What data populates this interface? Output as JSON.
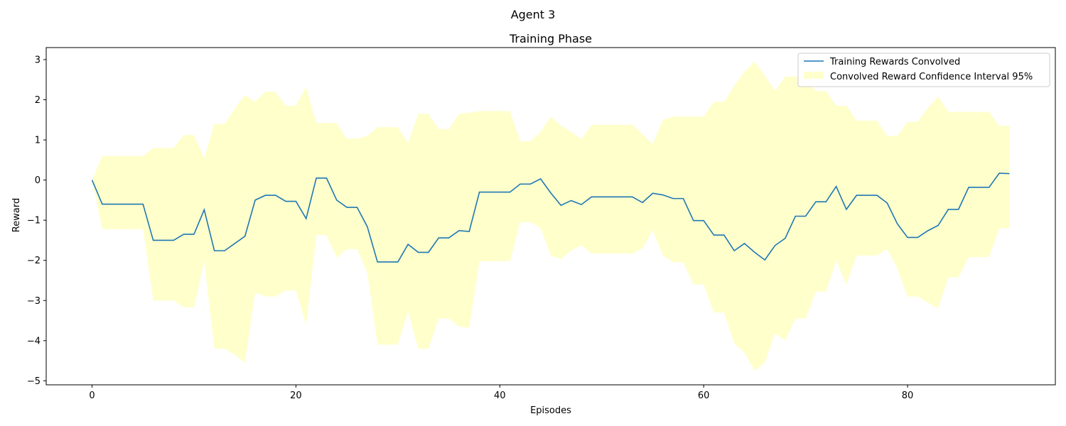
{
  "suptitle": "Agent 3",
  "chart_data": {
    "type": "line",
    "title": "Training Phase",
    "xlabel": "Episodes",
    "ylabel": "Reward",
    "xlim": [
      -4.5,
      94.5
    ],
    "ylim": [
      -5.1,
      3.3
    ],
    "xticks": [
      0,
      20,
      40,
      60,
      80
    ],
    "yticks": [
      3,
      2,
      1,
      0,
      -1,
      -2,
      -3,
      -4,
      -5
    ],
    "ytick_labels": [
      "3",
      "2",
      "1",
      "0",
      "−1",
      "−2",
      "−3",
      "−4",
      "−5"
    ],
    "legend_position": "top-right",
    "grid": false,
    "colors": {
      "line": "#1f77b4",
      "band": "#ffffcc"
    },
    "series": [
      {
        "name": "Training Rewards Convolved",
        "kind": "line",
        "x": [
          0,
          1,
          2,
          3,
          4,
          5,
          6,
          7,
          8,
          9,
          10,
          11,
          12,
          13,
          14,
          15,
          16,
          17,
          18,
          19,
          20,
          21,
          22,
          23,
          24,
          25,
          26,
          27,
          28,
          29,
          30,
          31,
          32,
          33,
          34,
          35,
          36,
          37,
          38,
          39,
          40,
          41,
          42,
          43,
          44,
          45,
          46,
          47,
          48,
          49,
          50,
          51,
          52,
          53,
          54,
          55,
          56,
          57,
          58,
          59,
          60,
          61,
          62,
          63,
          64,
          65,
          66,
          67,
          68,
          69,
          70,
          71,
          72,
          73,
          74,
          75,
          76,
          77,
          78,
          79,
          80,
          81,
          82,
          83,
          84,
          85,
          86,
          87,
          88,
          89,
          90
        ],
        "y": [
          0,
          -0.6,
          -0.6,
          -0.6,
          -0.6,
          -0.6,
          -1.5,
          -1.5,
          -1.5,
          -1.35,
          -1.35,
          -0.74,
          -1.76,
          -1.76,
          -1.58,
          -1.4,
          -0.5,
          -0.38,
          -0.38,
          -0.53,
          -0.53,
          -0.96,
          0.05,
          0.05,
          -0.5,
          -0.68,
          -0.68,
          -1.16,
          -2.04,
          -2.04,
          -2.04,
          -1.6,
          -1.8,
          -1.8,
          -1.44,
          -1.44,
          -1.26,
          -1.28,
          -0.3,
          -0.3,
          -0.3,
          -0.3,
          -0.1,
          -0.1,
          0.03,
          -0.32,
          -0.63,
          -0.51,
          -0.61,
          -0.42,
          -0.42,
          -0.42,
          -0.42,
          -0.42,
          -0.56,
          -0.33,
          -0.37,
          -0.46,
          -0.46,
          -1.01,
          -1.01,
          -1.37,
          -1.37,
          -1.76,
          -1.58,
          -1.8,
          -1.99,
          -1.63,
          -1.45,
          -0.9,
          -0.9,
          -0.54,
          -0.54,
          -0.16,
          -0.73,
          -0.38,
          -0.38,
          -0.38,
          -0.57,
          -1.09,
          -1.43,
          -1.43,
          -1.26,
          -1.13,
          -0.73,
          -0.73,
          -0.18,
          -0.18,
          -0.18,
          0.17,
          0.16
        ]
      },
      {
        "name": "Convolved Reward Confidence Interval 95%",
        "kind": "band",
        "x": [
          0,
          1,
          2,
          3,
          4,
          5,
          6,
          7,
          8,
          9,
          10,
          11,
          12,
          13,
          14,
          15,
          16,
          17,
          18,
          19,
          20,
          21,
          22,
          23,
          24,
          25,
          26,
          27,
          28,
          29,
          30,
          31,
          32,
          33,
          34,
          35,
          36,
          37,
          38,
          39,
          40,
          41,
          42,
          43,
          44,
          45,
          46,
          47,
          48,
          49,
          50,
          51,
          52,
          53,
          54,
          55,
          56,
          57,
          58,
          59,
          60,
          61,
          62,
          63,
          64,
          65,
          66,
          67,
          68,
          69,
          70,
          71,
          72,
          73,
          74,
          75,
          76,
          77,
          78,
          79,
          80,
          81,
          82,
          83,
          84,
          85,
          86,
          87,
          88,
          89,
          90
        ],
        "upper": [
          0,
          0.6,
          0.6,
          0.6,
          0.6,
          0.6,
          0.8,
          0.8,
          0.8,
          1.12,
          1.12,
          0.55,
          1.4,
          1.4,
          1.78,
          2.12,
          1.95,
          2.2,
          2.2,
          1.85,
          1.85,
          2.32,
          1.42,
          1.42,
          1.42,
          1.03,
          1.03,
          1.1,
          1.32,
          1.32,
          1.32,
          0.92,
          1.65,
          1.65,
          1.27,
          1.27,
          1.65,
          1.68,
          1.72,
          1.72,
          1.72,
          1.72,
          0.97,
          0.97,
          1.2,
          1.58,
          1.35,
          1.2,
          1.02,
          1.38,
          1.38,
          1.38,
          1.38,
          1.38,
          1.15,
          0.9,
          1.5,
          1.58,
          1.58,
          1.58,
          1.58,
          1.95,
          1.95,
          2.35,
          2.7,
          2.95,
          2.6,
          2.22,
          2.58,
          2.58,
          2.58,
          2.22,
          2.22,
          1.85,
          1.85,
          1.48,
          1.48,
          1.48,
          1.1,
          1.1,
          1.45,
          1.45,
          1.8,
          2.08,
          1.7,
          1.7,
          1.7,
          1.7,
          1.7,
          1.35,
          1.35
        ],
        "lower": [
          0,
          -1.22,
          -1.22,
          -1.22,
          -1.22,
          -1.22,
          -3.0,
          -3.0,
          -3.0,
          -3.17,
          -3.17,
          -2.02,
          -4.2,
          -4.2,
          -4.35,
          -4.55,
          -2.8,
          -2.9,
          -2.9,
          -2.75,
          -2.75,
          -3.62,
          -1.37,
          -1.37,
          -1.93,
          -1.72,
          -1.72,
          -2.3,
          -4.1,
          -4.1,
          -4.1,
          -3.28,
          -4.2,
          -4.2,
          -3.45,
          -3.45,
          -3.65,
          -3.68,
          -2.02,
          -2.02,
          -2.02,
          -2.02,
          -1.05,
          -1.05,
          -1.2,
          -1.88,
          -1.97,
          -1.75,
          -1.63,
          -1.83,
          -1.83,
          -1.83,
          -1.83,
          -1.83,
          -1.7,
          -1.25,
          -1.88,
          -2.05,
          -2.05,
          -2.6,
          -2.6,
          -3.3,
          -3.3,
          -4.07,
          -4.3,
          -4.75,
          -4.55,
          -3.82,
          -4.0,
          -3.45,
          -3.45,
          -2.78,
          -2.78,
          -2.0,
          -2.6,
          -1.88,
          -1.88,
          -1.88,
          -1.72,
          -2.2,
          -2.9,
          -2.9,
          -3.05,
          -3.2,
          -2.42,
          -2.42,
          -1.92,
          -1.92,
          -1.92,
          -1.2,
          -1.2
        ]
      }
    ]
  }
}
